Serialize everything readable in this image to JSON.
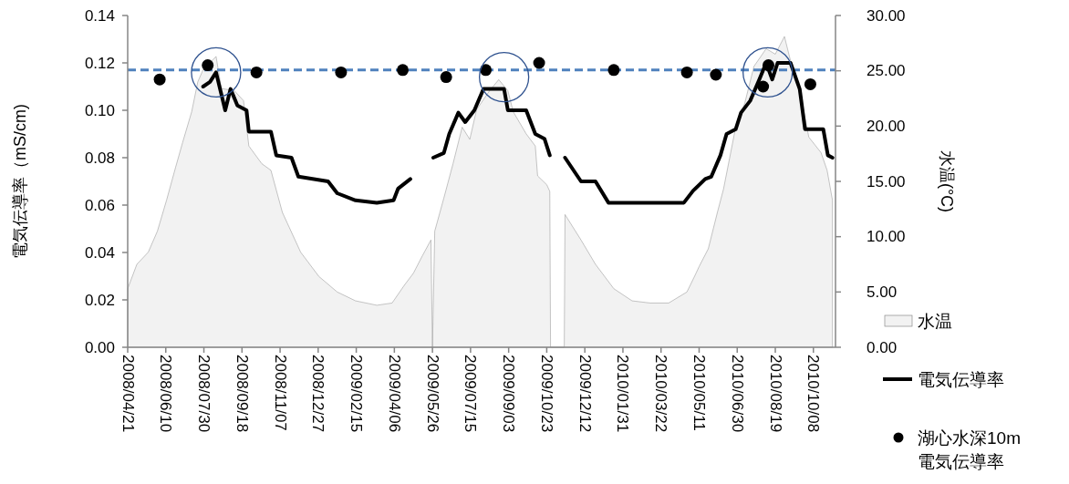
{
  "chart_data": {
    "type": "line",
    "ylabel": "電気伝導率（mS/cm)",
    "y2label": "水温(°C)",
    "xlim": [
      "2008-04-21",
      "2010-11-06"
    ],
    "ylim": [
      0,
      0.14
    ],
    "y2lim": [
      0,
      30
    ],
    "xticks": [
      {
        "value": "2008-04-21",
        "label": "2008/04/21"
      },
      {
        "value": "2008-06-10",
        "label": "2008/06/10"
      },
      {
        "value": "2008-07-30",
        "label": "2008/07/30"
      },
      {
        "value": "2008-09-18",
        "label": "2008/09/18"
      },
      {
        "value": "2008-11-07",
        "label": "2008/11/07"
      },
      {
        "value": "2008-12-27",
        "label": "2008/12/27"
      },
      {
        "value": "2009-02-15",
        "label": "2009/02/15"
      },
      {
        "value": "2009-04-06",
        "label": "2009/04/06"
      },
      {
        "value": "2009-05-26",
        "label": "2009/05/26"
      },
      {
        "value": "2009-07-15",
        "label": "2009/07/15"
      },
      {
        "value": "2009-09-03",
        "label": "2009/09/03"
      },
      {
        "value": "2009-10-23",
        "label": "2009/10/23"
      },
      {
        "value": "2009-12-12",
        "label": "2009/12/12"
      },
      {
        "value": "2010-01-31",
        "label": "2010/01/31"
      },
      {
        "value": "2010-03-22",
        "label": "2010/03/22"
      },
      {
        "value": "2010-05-11",
        "label": "2010/05/11"
      },
      {
        "value": "2010-06-30",
        "label": "2010/06/30"
      },
      {
        "value": "2010-08-19",
        "label": "2010/08/19"
      },
      {
        "value": "2010-10-08",
        "label": "2010/10/08"
      }
    ],
    "yticks": [
      {
        "value": 0,
        "label": "0.00"
      },
      {
        "value": 0.02,
        "label": "0.02"
      },
      {
        "value": 0.04,
        "label": "0.04"
      },
      {
        "value": 0.06,
        "label": "0.06"
      },
      {
        "value": 0.08,
        "label": "0.08"
      },
      {
        "value": 0.1,
        "label": "0.10"
      },
      {
        "value": 0.12,
        "label": "0.12"
      },
      {
        "value": 0.14,
        "label": "0.14"
      }
    ],
    "y2ticks": [
      {
        "value": 0,
        "label": "0.00"
      },
      {
        "value": 5,
        "label": "5.00"
      },
      {
        "value": 10,
        "label": "10.00"
      },
      {
        "value": 15,
        "label": "15.00"
      },
      {
        "value": 20,
        "label": "20.00"
      },
      {
        "value": 25,
        "label": "25.00"
      },
      {
        "value": 30,
        "label": "30.00"
      }
    ],
    "legend": "right",
    "ref_lines": [
      {
        "axis": "y",
        "value": 0.117,
        "color": "#4f81bd",
        "line_style": "dashed"
      }
    ],
    "series": [
      {
        "name": "水温",
        "type": "area",
        "axis": "y2",
        "color": "#f2f2f2",
        "x": [
          "2008-04-21",
          "2008-05-03",
          "2008-05-18",
          "2008-05-30",
          "2008-06-11",
          "2008-06-23",
          "2008-07-02",
          "2008-07-14",
          "2008-07-22",
          "2008-07-29",
          "2008-08-15",
          "2008-08-22",
          "2008-09-08",
          "2008-09-20",
          "2008-09-27",
          "2008-10-14",
          "2008-10-26",
          "2008-11-10",
          "2008-12-04",
          "2008-12-28",
          "2009-01-21",
          "2009-02-14",
          "2009-03-14",
          "2009-04-03",
          "2009-04-19",
          "2009-05-01",
          "2009-05-13",
          "2009-05-24",
          "2009-05-26",
          "2009-05-29",
          "2009-06-10",
          "2009-06-22",
          "2009-07-04",
          "2009-07-14",
          "2009-07-23",
          "2009-08-09",
          "2009-08-21",
          "2009-09-02",
          "2009-09-09",
          "2009-09-26",
          "2009-10-08",
          "2009-10-11",
          "2009-10-23",
          "2009-10-27",
          "2009-10-28",
          "2009-11-15",
          "2009-11-16",
          "2009-12-07",
          "2009-12-26",
          "2010-01-19",
          "2010-02-12",
          "2010-03-08",
          "2010-04-01",
          "2010-04-25",
          "2010-05-07",
          "2010-05-11",
          "2010-05-23",
          "2010-06-04",
          "2010-06-12",
          "2010-06-20",
          "2010-06-28",
          "2010-07-10",
          "2010-07-22",
          "2010-08-07",
          "2010-08-19",
          "2010-08-31",
          "2010-09-08",
          "2010-09-20",
          "2010-10-02",
          "2010-10-18",
          "2010-10-26",
          "2010-11-02"
        ],
        "values": [
          5.3,
          7.5,
          8.6,
          10.5,
          13.3,
          16.3,
          18.5,
          21.3,
          24.0,
          25.1,
          26.3,
          23.4,
          23.2,
          22.3,
          18.2,
          16.6,
          16.0,
          12.2,
          8.6,
          6.4,
          5.0,
          4.2,
          3.8,
          4.0,
          5.6,
          6.7,
          8.3,
          9.7,
          0,
          10.5,
          13.5,
          16.6,
          19.9,
          18.8,
          21.5,
          23.2,
          24.2,
          23.2,
          21.3,
          19.3,
          18.2,
          15.5,
          14.7,
          14.1,
          0,
          0,
          12.0,
          9.7,
          7.5,
          5.3,
          4.2,
          4.0,
          4.0,
          5.0,
          6.7,
          7.3,
          8.9,
          12.2,
          14.3,
          17.1,
          19.9,
          22.1,
          25.4,
          27.0,
          26.5,
          28.1,
          25.9,
          23.2,
          19.0,
          17.6,
          16.0,
          13.3
        ]
      },
      {
        "name": "電気伝導率",
        "color": "#000000",
        "x": [
          "2008-07-29",
          "2008-08-07",
          "2008-08-15",
          "2008-08-21",
          "2008-08-27",
          "2008-09-03",
          "2008-09-12",
          "2008-09-24",
          "2008-09-27",
          "2008-10-26",
          "2008-11-02",
          "2008-11-22",
          "2008-12-01",
          "2009-01-09",
          "2009-01-21",
          "2009-02-14",
          "2009-03-14",
          "2009-04-05",
          "2009-04-11",
          "2009-04-27"
        ],
        "values": [
          0.11,
          0.112,
          0.116,
          0.108,
          0.1,
          0.109,
          0.102,
          0.1,
          0.091,
          0.091,
          0.081,
          0.08,
          0.072,
          0.07,
          0.065,
          0.062,
          0.061,
          0.062,
          0.067,
          0.071
        ]
      },
      {
        "color": "#000000",
        "x": [
          "2009-05-27",
          "2009-06-10",
          "2009-06-17",
          "2009-06-29",
          "2009-07-08",
          "2009-07-20",
          "2009-08-01",
          "2009-08-13",
          "2009-08-28",
          "2009-09-02",
          "2009-09-26",
          "2009-10-08",
          "2009-10-20",
          "2009-10-27"
        ],
        "values": [
          0.08,
          0.082,
          0.09,
          0.099,
          0.095,
          0.1,
          0.109,
          0.109,
          0.109,
          0.1,
          0.1,
          0.09,
          0.088,
          0.081
        ]
      },
      {
        "color": "#000000",
        "x": [
          "2009-11-16",
          "2009-12-07",
          "2009-12-26",
          "2010-01-12",
          "2010-04-21",
          "2010-05-03",
          "2010-05-19",
          "2010-05-27",
          "2010-06-08",
          "2010-06-16",
          "2010-06-28",
          "2010-07-05",
          "2010-07-17",
          "2010-07-29",
          "2010-08-07",
          "2010-08-15",
          "2010-08-22",
          "2010-09-08",
          "2010-09-20",
          "2010-09-27",
          "2010-10-21",
          "2010-10-27",
          "2010-11-02"
        ],
        "values": [
          0.08,
          0.07,
          0.07,
          0.061,
          0.061,
          0.066,
          0.071,
          0.072,
          0.081,
          0.09,
          0.092,
          0.099,
          0.104,
          0.113,
          0.12,
          0.113,
          0.12,
          0.12,
          0.109,
          0.092,
          0.092,
          0.081,
          0.08
        ]
      },
      {
        "name": "湖心水深10m電気伝導率",
        "type": "scatter",
        "marker": "circle",
        "color": "#000000",
        "x": [
          "2008-06-02",
          "2008-08-04",
          "2008-10-07",
          "2009-01-26",
          "2009-04-17",
          "2009-06-13",
          "2009-08-04",
          "2009-10-13",
          "2010-01-19",
          "2010-04-25",
          "2010-06-02",
          "2010-08-03",
          "2010-08-10",
          "2010-10-04"
        ],
        "values": [
          0.113,
          0.119,
          0.116,
          0.116,
          0.117,
          0.114,
          0.117,
          0.12,
          0.117,
          0.116,
          0.115,
          0.11,
          0.119,
          0.111
        ]
      }
    ]
  }
}
